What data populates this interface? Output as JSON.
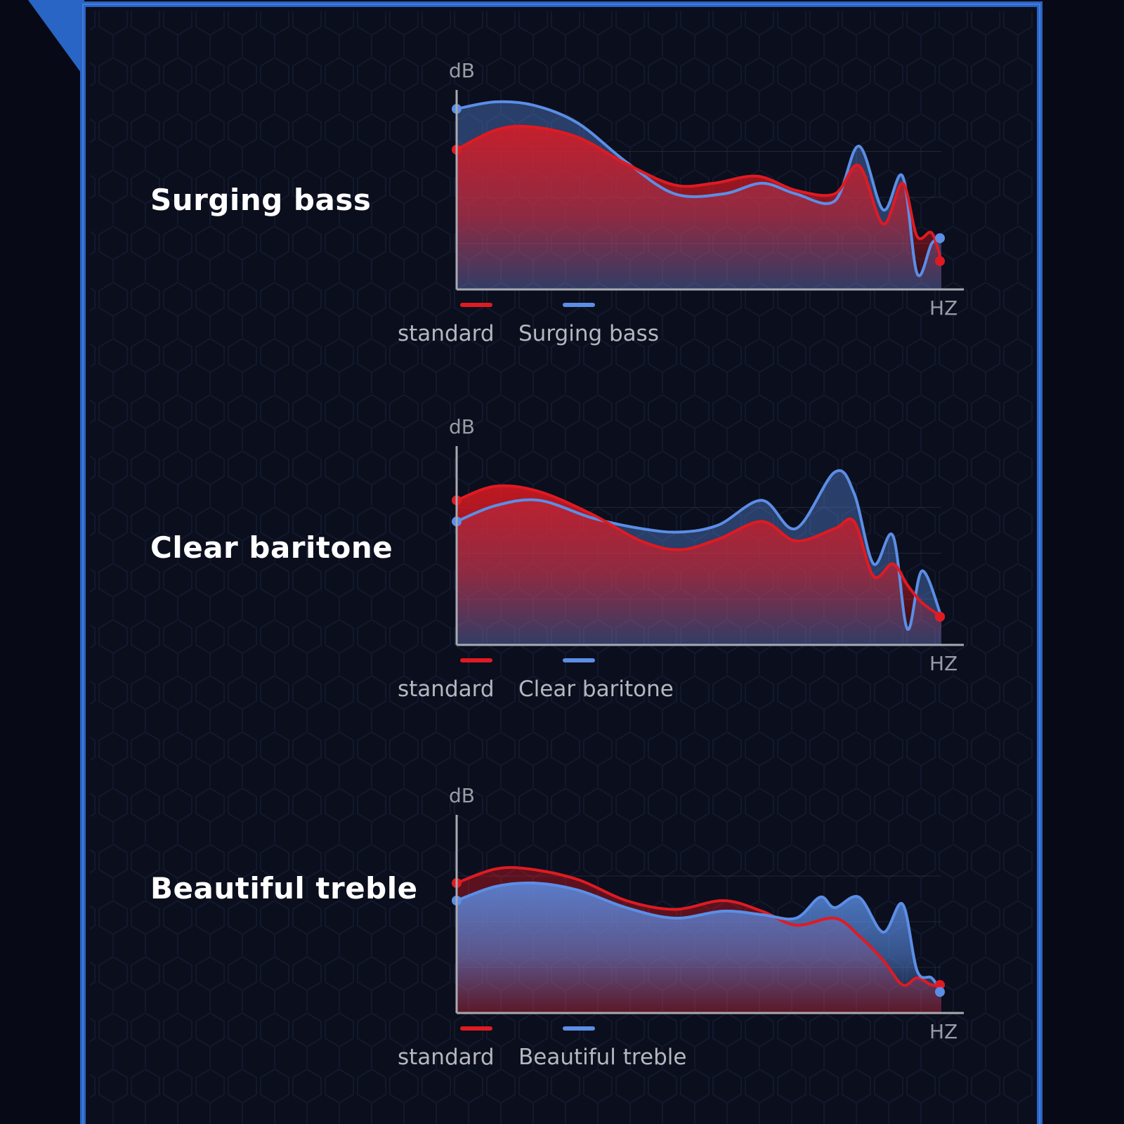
{
  "colors": {
    "standard": "#e01a22",
    "mode": "#5b8ee6",
    "background": "#070a16",
    "frame": "#2c68c8"
  },
  "chart_data": [
    {
      "type": "line",
      "title": "Surging bass",
      "ylabel": "dB",
      "xlabel": "HZ",
      "fill_series": "standard",
      "series": [
        {
          "name": "standard",
          "values": [
            [
              0,
              0.75
            ],
            [
              0.08,
              0.86
            ],
            [
              0.15,
              0.88
            ],
            [
              0.25,
              0.82
            ],
            [
              0.35,
              0.67
            ],
            [
              0.45,
              0.55
            ],
            [
              0.53,
              0.56
            ],
            [
              0.62,
              0.6
            ],
            [
              0.7,
              0.52
            ],
            [
              0.78,
              0.5
            ],
            [
              0.83,
              0.66
            ],
            [
              0.88,
              0.33
            ],
            [
              0.92,
              0.56
            ],
            [
              0.95,
              0.26
            ],
            [
              0.98,
              0.28
            ],
            [
              1,
              0.12
            ]
          ]
        },
        {
          "name": "Surging bass",
          "values": [
            [
              0,
              0.98
            ],
            [
              0.08,
              1.02
            ],
            [
              0.16,
              1.0
            ],
            [
              0.25,
              0.9
            ],
            [
              0.35,
              0.68
            ],
            [
              0.45,
              0.5
            ],
            [
              0.55,
              0.5
            ],
            [
              0.63,
              0.56
            ],
            [
              0.7,
              0.5
            ],
            [
              0.78,
              0.46
            ],
            [
              0.83,
              0.77
            ],
            [
              0.88,
              0.41
            ],
            [
              0.92,
              0.6
            ],
            [
              0.95,
              0.05
            ],
            [
              0.98,
              0.22
            ],
            [
              1,
              0.25
            ]
          ]
        }
      ],
      "legend": [
        "standard",
        "Surging bass"
      ]
    },
    {
      "type": "line",
      "title": "Clear baritone",
      "ylabel": "dB",
      "xlabel": "HZ",
      "fill_series": "standard",
      "series": [
        {
          "name": "standard",
          "values": [
            [
              0,
              0.78
            ],
            [
              0.08,
              0.86
            ],
            [
              0.17,
              0.83
            ],
            [
              0.28,
              0.7
            ],
            [
              0.38,
              0.55
            ],
            [
              0.46,
              0.5
            ],
            [
              0.54,
              0.56
            ],
            [
              0.63,
              0.66
            ],
            [
              0.7,
              0.55
            ],
            [
              0.78,
              0.62
            ],
            [
              0.82,
              0.66
            ],
            [
              0.86,
              0.35
            ],
            [
              0.9,
              0.42
            ],
            [
              0.93,
              0.3
            ],
            [
              0.96,
              0.2
            ],
            [
              1,
              0.12
            ]
          ]
        },
        {
          "name": "Clear baritone",
          "values": [
            [
              0,
              0.66
            ],
            [
              0.08,
              0.75
            ],
            [
              0.17,
              0.78
            ],
            [
              0.28,
              0.68
            ],
            [
              0.38,
              0.62
            ],
            [
              0.46,
              0.6
            ],
            [
              0.54,
              0.64
            ],
            [
              0.63,
              0.78
            ],
            [
              0.7,
              0.62
            ],
            [
              0.78,
              0.94
            ],
            [
              0.82,
              0.82
            ],
            [
              0.86,
              0.42
            ],
            [
              0.9,
              0.58
            ],
            [
              0.93,
              0.05
            ],
            [
              0.96,
              0.38
            ],
            [
              1,
              0.12
            ]
          ]
        }
      ],
      "legend": [
        "standard",
        "Clear baritone"
      ]
    },
    {
      "type": "line",
      "title": "Beautiful treble",
      "ylabel": "dB",
      "xlabel": "HZ",
      "fill_series": "Beautiful treble",
      "series": [
        {
          "name": "standard",
          "values": [
            [
              0,
              0.7
            ],
            [
              0.08,
              0.78
            ],
            [
              0.15,
              0.78
            ],
            [
              0.25,
              0.72
            ],
            [
              0.35,
              0.6
            ],
            [
              0.45,
              0.55
            ],
            [
              0.55,
              0.6
            ],
            [
              0.63,
              0.54
            ],
            [
              0.7,
              0.46
            ],
            [
              0.78,
              0.5
            ],
            [
              0.83,
              0.4
            ],
            [
              0.88,
              0.26
            ],
            [
              0.92,
              0.12
            ],
            [
              0.95,
              0.16
            ],
            [
              0.98,
              0.12
            ],
            [
              1,
              0.12
            ]
          ]
        },
        {
          "name": "Beautiful treble",
          "values": [
            [
              0,
              0.6
            ],
            [
              0.08,
              0.68
            ],
            [
              0.16,
              0.7
            ],
            [
              0.25,
              0.66
            ],
            [
              0.35,
              0.56
            ],
            [
              0.45,
              0.5
            ],
            [
              0.55,
              0.54
            ],
            [
              0.63,
              0.52
            ],
            [
              0.7,
              0.5
            ],
            [
              0.75,
              0.62
            ],
            [
              0.78,
              0.56
            ],
            [
              0.83,
              0.62
            ],
            [
              0.88,
              0.42
            ],
            [
              0.92,
              0.58
            ],
            [
              0.95,
              0.2
            ],
            [
              0.98,
              0.16
            ],
            [
              1,
              0.08
            ]
          ]
        }
      ],
      "legend": [
        "standard",
        "Beautiful treble"
      ]
    }
  ]
}
